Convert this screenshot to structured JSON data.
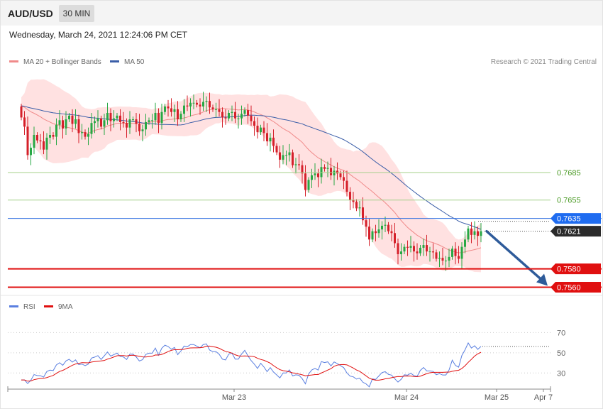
{
  "header": {
    "symbol": "AUD/USD",
    "timeframe": "30 MIN",
    "datetime": "Wednesday, March 24, 2021 12:24:06 PM CET"
  },
  "legend": {
    "ma20_bollinger": "MA 20 + Bollinger Bands",
    "ma50": "MA 50",
    "credit": "Research © 2021 Trading Central",
    "rsi": "RSI",
    "rsi_ma": "9MA"
  },
  "colors": {
    "bull": "#27a844",
    "bear": "#d5202a",
    "bollinger_fill": "#ffd9d9",
    "ma20": "#f08a8a",
    "ma50": "#3b5ea8",
    "resistance": "#a6d08a",
    "pivot": "#2f6fe0",
    "support": "#e01010",
    "arrow": "#2e5b9a",
    "rsi_line": "#5a7fe0",
    "rsi_ma_line": "#e01010"
  },
  "chart_data": [
    {
      "type": "candlestick",
      "title": "AUD/USD",
      "timeframe": "30 MIN",
      "x_ticks": [
        "Mar 23",
        "Mar 24",
        "Mar 25",
        "Apr 7"
      ],
      "ylim": [
        0.7548,
        0.7815
      ],
      "price_levels": [
        {
          "name": "resistance-2",
          "value": 0.7685,
          "label": "0.7685",
          "style": "resistance"
        },
        {
          "name": "resistance-1",
          "value": 0.7655,
          "label": "0.7655",
          "style": "resistance"
        },
        {
          "name": "pivot",
          "value": 0.7635,
          "label": "0.7635",
          "style": "pivot"
        },
        {
          "name": "last-price",
          "value": 0.7621,
          "label": "0.7621",
          "style": "last"
        },
        {
          "name": "support-1",
          "value": 0.758,
          "label": "0.7580",
          "style": "support"
        },
        {
          "name": "support-2",
          "value": 0.756,
          "label": "0.7560",
          "style": "support"
        }
      ],
      "close": [
        0.7745,
        0.7735,
        0.7704,
        0.7712,
        0.7726,
        0.772,
        0.7719,
        0.771,
        0.7723,
        0.7726,
        0.7724,
        0.7737,
        0.7742,
        0.7733,
        0.7743,
        0.7747,
        0.7738,
        0.7743,
        0.7728,
        0.7729,
        0.7724,
        0.7727,
        0.7739,
        0.7741,
        0.7744,
        0.7735,
        0.7742,
        0.775,
        0.7741,
        0.7744,
        0.7747,
        0.774,
        0.7739,
        0.7734,
        0.7743,
        0.7743,
        0.7738,
        0.773,
        0.7732,
        0.774,
        0.7742,
        0.7742,
        0.775,
        0.7739,
        0.7751,
        0.7757,
        0.7755,
        0.7751,
        0.7754,
        0.7743,
        0.7749,
        0.7758,
        0.7757,
        0.7761,
        0.7761,
        0.7759,
        0.7757,
        0.7762,
        0.7763,
        0.7756,
        0.7754,
        0.7754,
        0.7751,
        0.7745,
        0.7744,
        0.775,
        0.7751,
        0.7744,
        0.7744,
        0.7749,
        0.7753,
        0.7747,
        0.7741,
        0.7736,
        0.7729,
        0.7734,
        0.7728,
        0.7719,
        0.7723,
        0.7714,
        0.7707,
        0.7699,
        0.7704,
        0.7704,
        0.7707,
        0.7693,
        0.7694,
        0.7693,
        0.7684,
        0.7666,
        0.7677,
        0.7682,
        0.7684,
        0.768,
        0.7691,
        0.7689,
        0.769,
        0.7682,
        0.7687,
        0.7684,
        0.768,
        0.7676,
        0.7664,
        0.7655,
        0.7653,
        0.7646,
        0.7647,
        0.7633,
        0.7626,
        0.7612,
        0.7621,
        0.7619,
        0.7623,
        0.7627,
        0.7628,
        0.7621,
        0.7619,
        0.7608,
        0.7596,
        0.7599,
        0.7604,
        0.7603,
        0.7605,
        0.7599,
        0.7597,
        0.7603,
        0.7606,
        0.7599,
        0.7599,
        0.7598,
        0.7591,
        0.7592,
        0.7589,
        0.7589,
        0.7593,
        0.7602,
        0.7594,
        0.7591,
        0.7604,
        0.7612,
        0.7624,
        0.7617,
        0.7621,
        0.7616,
        0.7621
      ],
      "series": [
        {
          "name": "MA 20 + Bollinger Bands"
        },
        {
          "name": "MA 50"
        }
      ]
    },
    {
      "type": "line",
      "title": "RSI",
      "ylim": [
        14,
        90
      ],
      "y_ticks": [
        30,
        50,
        70
      ],
      "series": [
        {
          "name": "RSI"
        },
        {
          "name": "9MA"
        }
      ]
    }
  ]
}
